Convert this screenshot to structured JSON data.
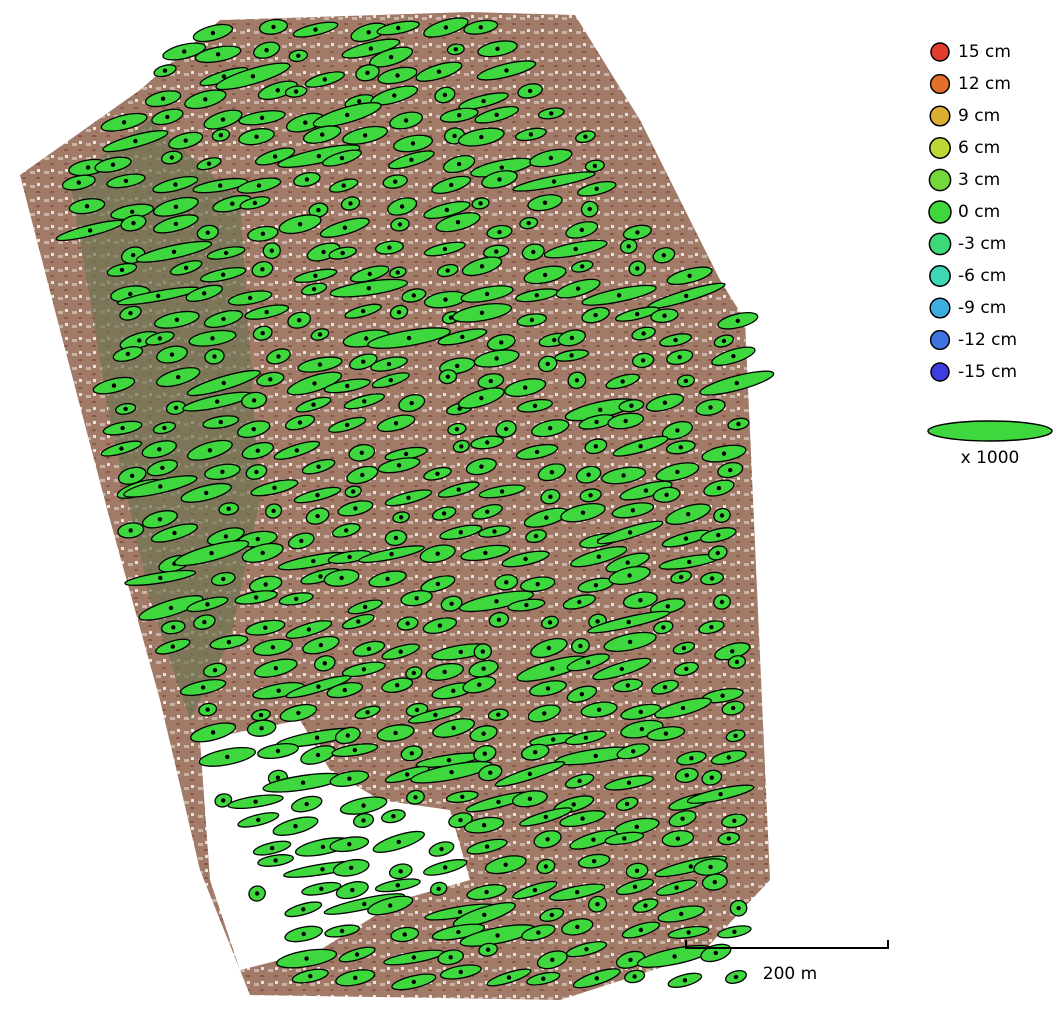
{
  "legend": {
    "items": [
      {
        "label": "15 cm",
        "color": "#e23c2c"
      },
      {
        "label": "12 cm",
        "color": "#e2702c"
      },
      {
        "label": "9 cm",
        "color": "#dcae34"
      },
      {
        "label": "6 cm",
        "color": "#bcd836"
      },
      {
        "label": "3 cm",
        "color": "#74d83a"
      },
      {
        "label": "0 cm",
        "color": "#3ed83e"
      },
      {
        "label": "-3 cm",
        "color": "#3ed878"
      },
      {
        "label": "-6 cm",
        "color": "#3ed8b6"
      },
      {
        "label": "-9 cm",
        "color": "#3eaee0"
      },
      {
        "label": "-12 cm",
        "color": "#3e74e0"
      },
      {
        "label": "-15 cm",
        "color": "#3e3ee0"
      }
    ],
    "scale_label": "x 1000"
  },
  "scale_bar": {
    "label": "200 m"
  }
}
